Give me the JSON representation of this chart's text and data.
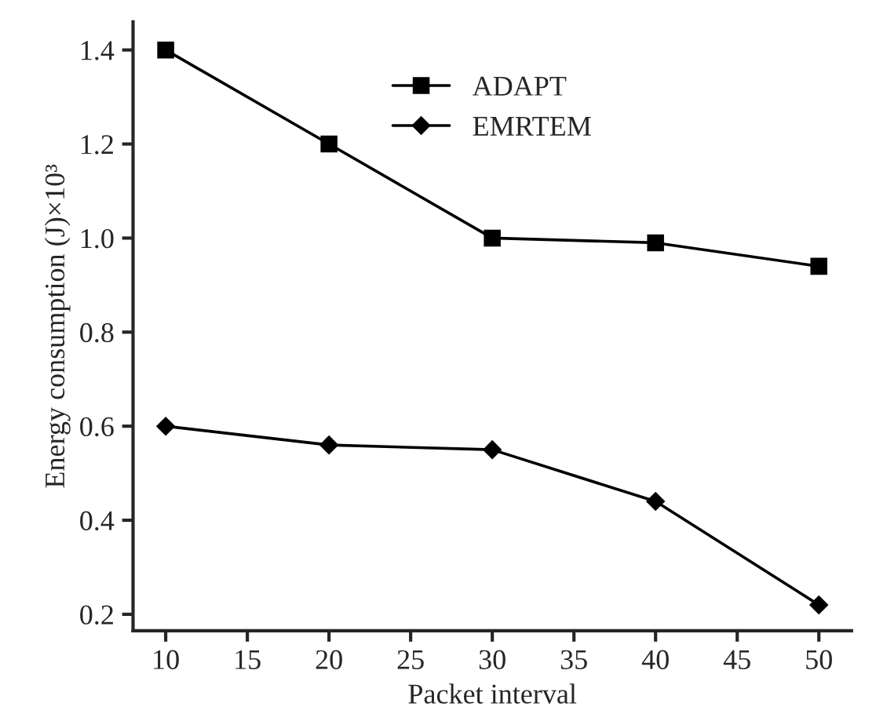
{
  "chart_data": {
    "type": "line",
    "xlabel": "Packet interval",
    "ylabel": "Energy consumption (J)×10³",
    "x": [
      10,
      20,
      30,
      40,
      50
    ],
    "series": [
      {
        "name": "ADAPT",
        "color": "#000000",
        "marker": "square",
        "values": [
          1.4,
          1.2,
          1.0,
          0.99,
          0.94
        ]
      },
      {
        "name": "EMRTEM",
        "color": "#000000",
        "marker": "diamond",
        "values": [
          0.6,
          0.56,
          0.55,
          0.44,
          0.22
        ]
      }
    ],
    "xlim": [
      8,
      52
    ],
    "xticks": [
      10,
      15,
      20,
      25,
      30,
      35,
      40,
      45,
      50
    ],
    "ylim": [
      0.165,
      1.46
    ],
    "yticks": [
      0.2,
      0.4,
      0.6,
      0.8,
      {
        "value": 1.0,
        "label": "1.0"
      },
      1.2,
      1.4
    ],
    "legend": "top",
    "grid": false,
    "line_style": "solid"
  }
}
